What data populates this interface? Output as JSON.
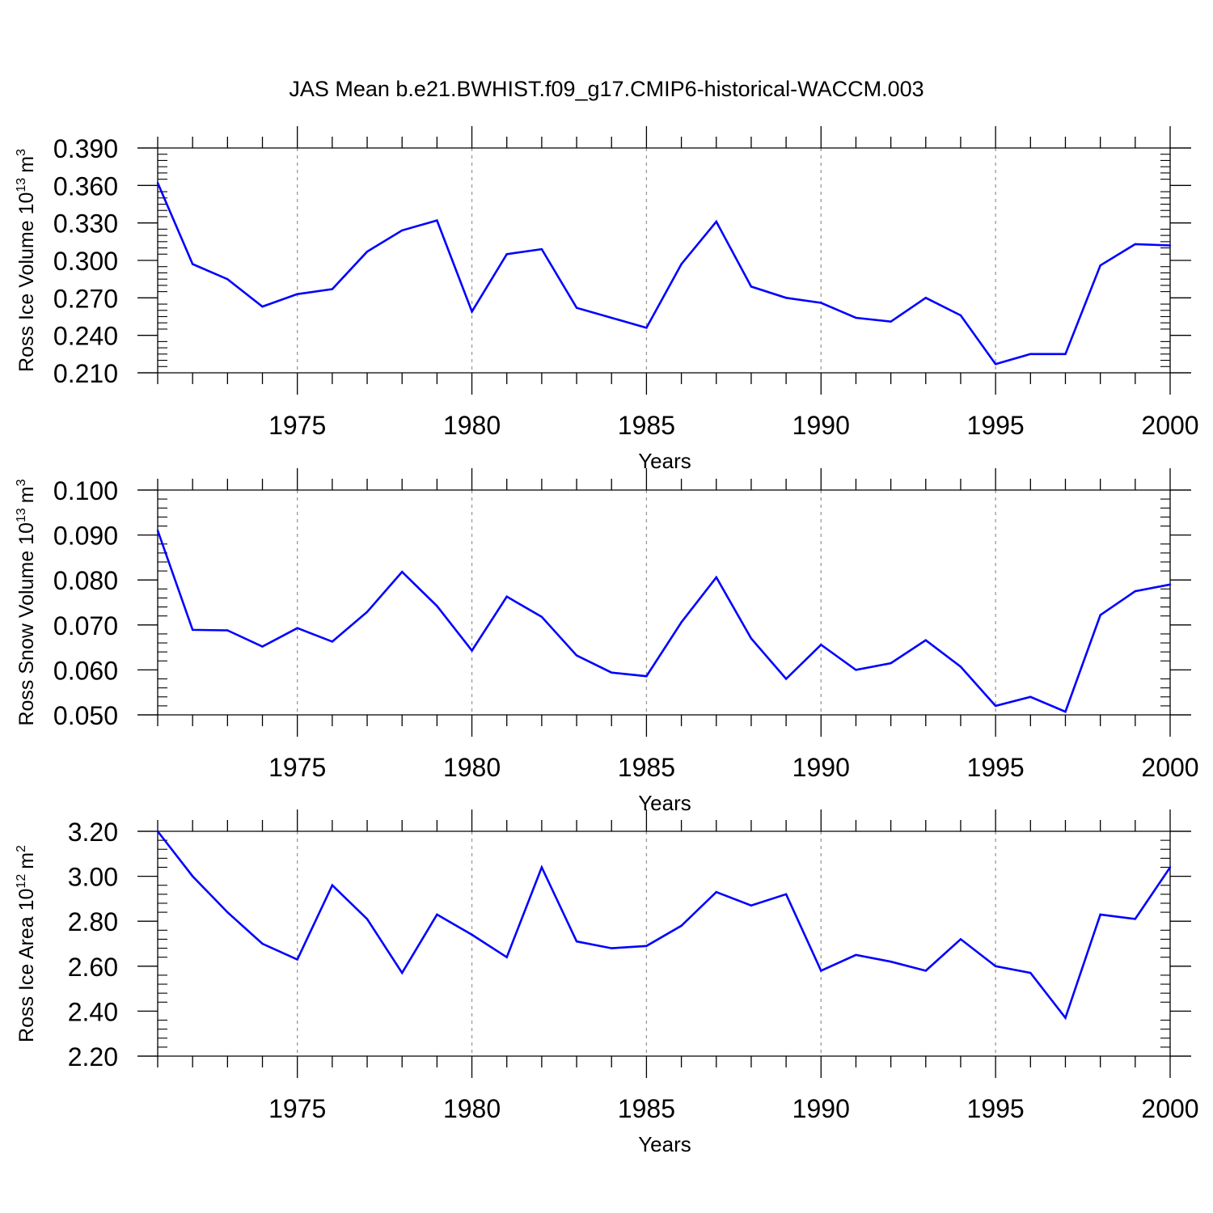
{
  "figure": {
    "title": "JAS Mean b.e21.BWHIST.f09_g17.CMIP6-historical-WACCM.003"
  },
  "chart_data": [
    {
      "type": "line",
      "title": "",
      "xlabel": "Years",
      "ylabel": "Ross Ice Volume 10",
      "ylabel_sup": "13",
      "ylabel_unit": "m",
      "ylabel_unit_sup": "3",
      "xlim": [
        1971,
        2000
      ],
      "ylim": [
        0.21,
        0.39
      ],
      "xticks": [
        1975,
        1980,
        1985,
        1990,
        1995,
        2000
      ],
      "yticks": [
        0.21,
        0.24,
        0.27,
        0.3,
        0.33,
        0.36,
        0.39
      ],
      "ytick_labels": [
        "0.210",
        "0.240",
        "0.270",
        "0.300",
        "0.330",
        "0.360",
        "0.390"
      ],
      "grid": "vertical dashed at major x ticks",
      "line_color": "#0000ff",
      "x": [
        1971,
        1972,
        1973,
        1974,
        1975,
        1976,
        1977,
        1978,
        1979,
        1980,
        1981,
        1982,
        1983,
        1984,
        1985,
        1986,
        1987,
        1988,
        1989,
        1990,
        1991,
        1992,
        1993,
        1994,
        1995,
        1996,
        1997,
        1998,
        1999,
        2000
      ],
      "values": [
        0.362,
        0.297,
        0.285,
        0.263,
        0.273,
        0.277,
        0.307,
        0.324,
        0.332,
        0.259,
        0.305,
        0.309,
        0.262,
        0.254,
        0.246,
        0.297,
        0.331,
        0.279,
        0.27,
        0.266,
        0.254,
        0.251,
        0.27,
        0.256,
        0.217,
        0.225,
        0.225,
        0.296,
        0.313,
        0.312
      ]
    },
    {
      "type": "line",
      "title": "",
      "xlabel": "Years",
      "ylabel": "Ross Snow Volume 10",
      "ylabel_sup": "13",
      "ylabel_unit": "m",
      "ylabel_unit_sup": "3",
      "xlim": [
        1971,
        2000
      ],
      "ylim": [
        0.05,
        0.1
      ],
      "xticks": [
        1975,
        1980,
        1985,
        1990,
        1995,
        2000
      ],
      "yticks": [
        0.05,
        0.06,
        0.07,
        0.08,
        0.09,
        0.1
      ],
      "ytick_labels": [
        "0.050",
        "0.060",
        "0.070",
        "0.080",
        "0.090",
        "0.100"
      ],
      "grid": "vertical dashed at major x ticks",
      "line_color": "#0000ff",
      "x": [
        1971,
        1972,
        1973,
        1974,
        1975,
        1976,
        1977,
        1978,
        1979,
        1980,
        1981,
        1982,
        1983,
        1984,
        1985,
        1986,
        1987,
        1988,
        1989,
        1990,
        1991,
        1992,
        1993,
        1994,
        1995,
        1996,
        1997,
        1998,
        1999,
        2000
      ],
      "values": [
        0.091,
        0.0689,
        0.0688,
        0.0652,
        0.0693,
        0.0663,
        0.0729,
        0.0818,
        0.0742,
        0.0643,
        0.0763,
        0.0718,
        0.0632,
        0.0594,
        0.0586,
        0.0706,
        0.0806,
        0.067,
        0.058,
        0.0656,
        0.06,
        0.0615,
        0.0666,
        0.0607,
        0.052,
        0.054,
        0.0507,
        0.0722,
        0.0775,
        0.079
      ]
    },
    {
      "type": "line",
      "title": "",
      "xlabel": "Years",
      "ylabel": "Ross Ice Area 10",
      "ylabel_sup": "12",
      "ylabel_unit": "m",
      "ylabel_unit_sup": "2",
      "xlim": [
        1971,
        2000
      ],
      "ylim": [
        2.2,
        3.2
      ],
      "xticks": [
        1975,
        1980,
        1985,
        1990,
        1995,
        2000
      ],
      "yticks": [
        2.2,
        2.4,
        2.6,
        2.8,
        3.0,
        3.2
      ],
      "ytick_labels": [
        "2.20",
        "2.40",
        "2.60",
        "2.80",
        "3.00",
        "3.20"
      ],
      "grid": "vertical dashed at major x ticks",
      "line_color": "#0000ff",
      "x": [
        1971,
        1972,
        1973,
        1974,
        1975,
        1976,
        1977,
        1978,
        1979,
        1980,
        1981,
        1982,
        1983,
        1984,
        1985,
        1986,
        1987,
        1988,
        1989,
        1990,
        1991,
        1992,
        1993,
        1994,
        1995,
        1996,
        1997,
        1998,
        1999,
        2000
      ],
      "values": [
        3.2,
        3.0,
        2.84,
        2.7,
        2.63,
        2.96,
        2.81,
        2.57,
        2.83,
        2.74,
        2.64,
        3.04,
        2.71,
        2.68,
        2.69,
        2.78,
        2.93,
        2.87,
        2.92,
        2.58,
        2.65,
        2.62,
        2.58,
        2.72,
        2.6,
        2.57,
        2.37,
        2.83,
        2.81,
        3.04
      ]
    }
  ]
}
